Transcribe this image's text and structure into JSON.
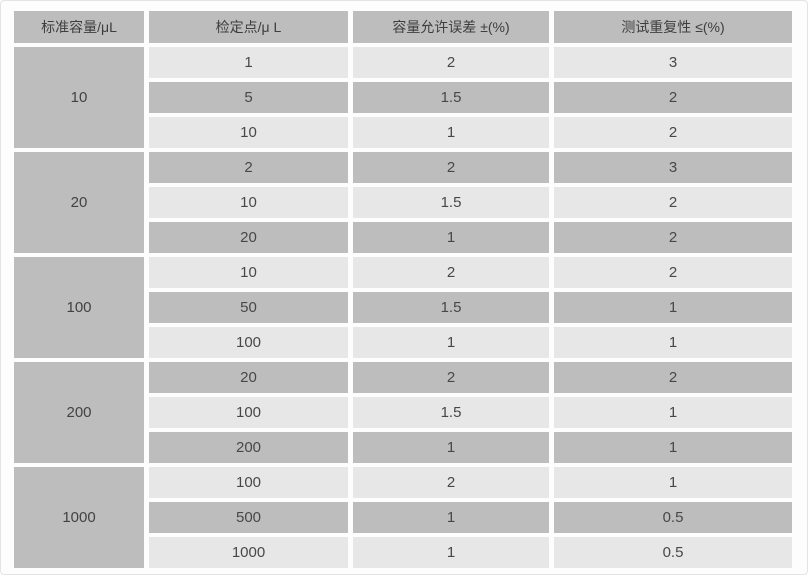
{
  "colors": {
    "header_bg": "#bdbdbd",
    "row_dark_bg": "#bdbdbd",
    "row_light_bg": "#e7e7e7",
    "gap": "#fdfdfd",
    "text": "#484848"
  },
  "table": {
    "headers": [
      "标准容量/μL",
      "检定点/μ L",
      "容量允许误差 ±(%)",
      "测试重复性 ≤(%)"
    ],
    "groups": [
      {
        "capacity": "10",
        "rows": [
          [
            "1",
            "2",
            "3"
          ],
          [
            "5",
            "1.5",
            "2"
          ],
          [
            "10",
            "1",
            "2"
          ]
        ]
      },
      {
        "capacity": "20",
        "rows": [
          [
            "2",
            "2",
            "3"
          ],
          [
            "10",
            "1.5",
            "2"
          ],
          [
            "20",
            "1",
            "2"
          ]
        ]
      },
      {
        "capacity": "100",
        "rows": [
          [
            "10",
            "2",
            "2"
          ],
          [
            "50",
            "1.5",
            "1"
          ],
          [
            "100",
            "1",
            "1"
          ]
        ]
      },
      {
        "capacity": "200",
        "rows": [
          [
            "20",
            "2",
            "2"
          ],
          [
            "100",
            "1.5",
            "1"
          ],
          [
            "200",
            "1",
            "1"
          ]
        ]
      },
      {
        "capacity": "1000",
        "rows": [
          [
            "100",
            "2",
            "1"
          ],
          [
            "500",
            "1",
            "0.5"
          ],
          [
            "1000",
            "1",
            "0.5"
          ]
        ]
      }
    ]
  }
}
